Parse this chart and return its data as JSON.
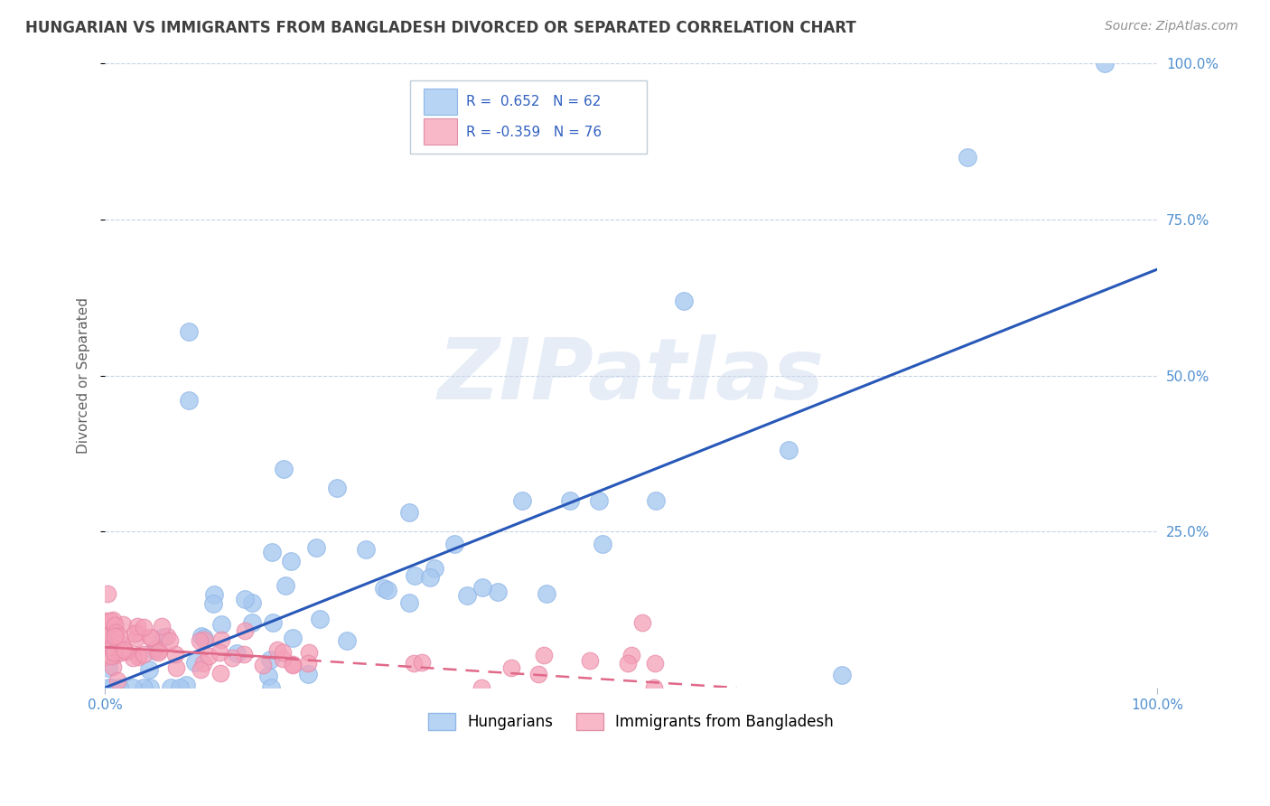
{
  "title": "HUNGARIAN VS IMMIGRANTS FROM BANGLADESH DIVORCED OR SEPARATED CORRELATION CHART",
  "source": "Source: ZipAtlas.com",
  "ylabel": "Divorced or Separated",
  "legend1_R": "0.652",
  "legend1_N": "62",
  "legend2_R": "-0.359",
  "legend2_N": "76",
  "blue_color": "#a8c8f0",
  "blue_edge_color": "#90b8e8",
  "pink_color": "#f4a0b8",
  "pink_edge_color": "#e888a8",
  "blue_line_color": "#2858b8",
  "pink_line_color": "#e06888",
  "legend_blue_fill": "#b8d4f4",
  "legend_pink_fill": "#f8b8c8",
  "title_color": "#404040",
  "source_color": "#909090",
  "watermark": "ZIPatlas",
  "watermark_color": "#c8d8ee",
  "background": "#ffffff",
  "grid_color": "#c8d4e4",
  "right_tick_color": "#5090d0",
  "xlim": [
    0.0,
    1.0
  ],
  "ylim": [
    0.0,
    1.0
  ],
  "blue_line_x0": 0.0,
  "blue_line_y0": 0.0,
  "blue_line_x1": 1.0,
  "blue_line_y1": 0.67,
  "pink_line_x0": 0.0,
  "pink_line_x1": 0.6,
  "pink_line_y0": 0.065,
  "pink_line_y1": 0.0
}
